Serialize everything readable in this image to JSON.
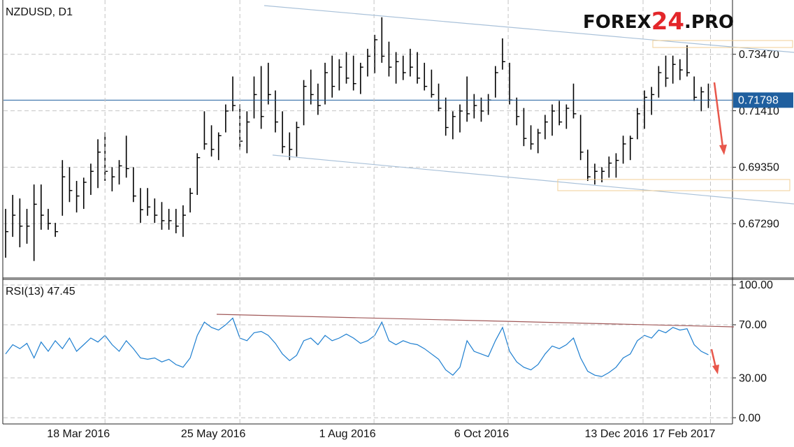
{
  "logo": [
    "FOREX",
    "24",
    ".PRO"
  ],
  "chart_data": [
    {
      "type": "ohlc",
      "title": "NZDUSD, D1",
      "color": "#000000",
      "xlim": [
        -0.3,
        102.4
      ],
      "ylim": [
        0.6531,
        0.7545
      ],
      "yticks": [
        {
          "value": 0.6729,
          "label": "0.67290"
        },
        {
          "value": 0.6935,
          "label": "0.69350"
        },
        {
          "value": 0.7141,
          "label": "0.71410"
        },
        {
          "value": 0.7347,
          "label": "0.73470"
        }
      ],
      "grid": true,
      "last": 0.71798,
      "last_color": "#1f5f9f",
      "high": [
        0.6783,
        0.6834,
        0.6821,
        0.6783,
        0.6872,
        0.6872,
        0.6783,
        0.6732,
        0.6961,
        0.6935,
        0.6885,
        0.6897,
        0.6948,
        0.7037,
        0.7062,
        0.6935,
        0.6961,
        0.705,
        0.6935,
        0.6859,
        0.6859,
        0.6821,
        0.6808,
        0.6783,
        0.6783,
        0.6796,
        0.6859,
        0.6986,
        0.7139,
        0.7088,
        0.7062,
        0.7164,
        0.7266,
        0.7164,
        0.7139,
        0.7266,
        0.7304,
        0.7316,
        0.7215,
        0.7139,
        0.7062,
        0.7101,
        0.7253,
        0.7291,
        0.724,
        0.7316,
        0.7342,
        0.7329,
        0.7355,
        0.7342,
        0.7316,
        0.7367,
        0.7418,
        0.7482,
        0.7393,
        0.7355,
        0.7342,
        0.7367,
        0.7355,
        0.7316,
        0.7291,
        0.724,
        0.7189,
        0.7139,
        0.7164,
        0.7266,
        0.7202,
        0.7189,
        0.7202,
        0.7304,
        0.7405,
        0.7316,
        0.7189,
        0.7151,
        0.7088,
        0.7075,
        0.7126,
        0.7164,
        0.7177,
        0.7164,
        0.724,
        0.7126,
        0.6999,
        0.6948,
        0.6935,
        0.6974,
        0.6986,
        0.705,
        0.705,
        0.7151,
        0.7215,
        0.7228,
        0.7304,
        0.7342,
        0.7342,
        0.7329,
        0.738,
        0.7266,
        0.7228,
        0.724
      ],
      "low": [
        0.6605,
        0.6681,
        0.6643,
        0.6656,
        0.6593,
        0.6707,
        0.6707,
        0.6681,
        0.6758,
        0.6808,
        0.677,
        0.6783,
        0.6834,
        0.6859,
        0.6885,
        0.6847,
        0.6872,
        0.6897,
        0.6808,
        0.6732,
        0.6758,
        0.6732,
        0.6707,
        0.6707,
        0.6694,
        0.6681,
        0.677,
        0.6834,
        0.6999,
        0.6974,
        0.6961,
        0.7062,
        0.7139,
        0.6999,
        0.6986,
        0.7113,
        0.7075,
        0.7164,
        0.7062,
        0.6986,
        0.6961,
        0.6974,
        0.7088,
        0.7164,
        0.7126,
        0.7164,
        0.7189,
        0.7215,
        0.724,
        0.7215,
        0.7202,
        0.7266,
        0.7278,
        0.7316,
        0.7266,
        0.724,
        0.7253,
        0.7266,
        0.724,
        0.7215,
        0.7189,
        0.7139,
        0.705,
        0.7037,
        0.7062,
        0.7101,
        0.7113,
        0.7101,
        0.7126,
        0.7189,
        0.7291,
        0.7164,
        0.7088,
        0.7012,
        0.6999,
        0.6986,
        0.7037,
        0.705,
        0.7088,
        0.7075,
        0.7113,
        0.6961,
        0.6885,
        0.6872,
        0.688,
        0.6897,
        0.6897,
        0.6948,
        0.6961,
        0.7037,
        0.7075,
        0.7126,
        0.7189,
        0.7228,
        0.724,
        0.7253,
        0.7266,
        0.7177,
        0.7139,
        0.7151
      ],
      "close": [
        0.67,
        0.676,
        0.672,
        0.672,
        0.68,
        0.676,
        0.673,
        0.67,
        0.69,
        0.685,
        0.683,
        0.688,
        0.692,
        0.699,
        0.692,
        0.69,
        0.694,
        0.693,
        0.683,
        0.678,
        0.679,
        0.676,
        0.674,
        0.674,
        0.672,
        0.676,
        0.684,
        0.697,
        0.702,
        0.7,
        0.705,
        0.714,
        0.716,
        0.703,
        0.71,
        0.72,
        0.712,
        0.72,
        0.71,
        0.701,
        0.7,
        0.708,
        0.723,
        0.72,
        0.716,
        0.728,
        0.723,
        0.73,
        0.726,
        0.724,
        0.73,
        0.734,
        0.74,
        0.734,
        0.73,
        0.732,
        0.728,
        0.73,
        0.726,
        0.723,
        0.72,
        0.715,
        0.708,
        0.712,
        0.714,
        0.713,
        0.716,
        0.714,
        0.718,
        0.728,
        0.732,
        0.718,
        0.712,
        0.704,
        0.702,
        0.706,
        0.71,
        0.714,
        0.71,
        0.715,
        0.713,
        0.699,
        0.69,
        0.692,
        0.692,
        0.695,
        0.696,
        0.702,
        0.704,
        0.713,
        0.719,
        0.72,
        0.728,
        0.726,
        0.731,
        0.729,
        0.728,
        0.719,
        0.721,
        0.718
      ]
    },
    {
      "type": "line",
      "title": "RSI(13) 47.45",
      "xlim": [
        -0.3,
        102.4
      ],
      "ylim": [
        -4.7,
        104.2
      ],
      "yticks": [
        {
          "value": 0,
          "label": "0.00"
        },
        {
          "value": 30,
          "label": "30.00"
        },
        {
          "value": 70,
          "label": "70.00"
        },
        {
          "value": 100,
          "label": "100.00"
        }
      ],
      "grid": true,
      "xticks": [
        {
          "value": 14.0,
          "label": "18 Mar 2016"
        },
        {
          "value": 33.0,
          "label": "25 May 2016"
        },
        {
          "value": 51.9,
          "label": "1 Aug 2016"
        },
        {
          "value": 70.8,
          "label": "6 Oct 2016"
        },
        {
          "value": 89.8,
          "label": "13 Dec 2016"
        },
        {
          "value": 99.3,
          "label": "17 Feb 2017"
        }
      ],
      "series": [
        {
          "color": "#1e7fd0",
          "values": [
            48,
            55,
            52,
            56,
            45,
            57,
            50,
            58,
            52,
            60,
            50,
            55,
            60,
            57,
            62,
            55,
            50,
            58,
            52,
            45,
            44,
            45,
            42,
            44,
            40,
            38,
            45,
            62,
            72,
            68,
            66,
            70,
            75,
            60,
            58,
            64,
            65,
            62,
            56,
            48,
            43,
            47,
            58,
            60,
            55,
            62,
            58,
            60,
            63,
            60,
            56,
            58,
            62,
            72,
            58,
            55,
            58,
            56,
            55,
            52,
            48,
            44,
            36,
            32,
            38,
            58,
            50,
            48,
            46,
            58,
            68,
            50,
            42,
            38,
            36,
            40,
            48,
            54,
            52,
            55,
            60,
            45,
            35,
            32,
            31,
            34,
            38,
            45,
            48,
            58,
            62,
            60,
            66,
            64,
            68,
            66,
            67,
            55,
            50,
            47.45
          ]
        }
      ]
    }
  ]
}
